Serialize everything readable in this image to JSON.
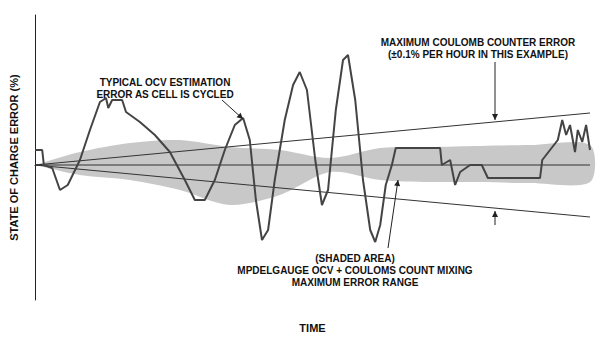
{
  "chart_data": {
    "type": "line",
    "x_label": "TIME",
    "y_label": "STATE OF CHARGE ERROR (%)",
    "xlim": [
      0,
      100
    ],
    "ylim": [
      -13.5,
      15
    ],
    "tick_labels": false,
    "grid": false,
    "series": [
      {
        "type": "band",
        "color": "#c8c8c8",
        "x": [
          0,
          8.1,
          17.1,
          26.1,
          35.1,
          44.1,
          53.2,
          62.2,
          71.2,
          80.2,
          89.2,
          100
        ],
        "upper": [
          0,
          1.3,
          2.2,
          2.5,
          1.8,
          1.5,
          0.7,
          1.7,
          1.8,
          1.9,
          2.0,
          2.0
        ],
        "lower": [
          0,
          -1.0,
          -1.5,
          -2.5,
          -4.0,
          -3.0,
          -0.7,
          -1.5,
          -1.7,
          -1.7,
          -1.8,
          -1.7
        ]
      },
      {
        "type": "line",
        "color": "#333333",
        "marker": "none",
        "line_style": "solid",
        "x": [
          0,
          100
        ],
        "values": [
          0,
          0
        ]
      },
      {
        "type": "line",
        "color": "#333333",
        "marker": "none",
        "line_style": "solid",
        "x": [
          0,
          100
        ],
        "values": [
          0,
          5.2
        ]
      },
      {
        "type": "line",
        "color": "#333333",
        "marker": "none",
        "line_style": "solid",
        "x": [
          0,
          100
        ],
        "values": [
          0,
          -5.2
        ]
      },
      {
        "type": "line",
        "color": "#444444",
        "marker": "none",
        "line_style": "solid",
        "x": [
          0,
          1.3,
          1.6,
          3.1,
          4.5,
          5.9,
          8.1,
          9.9,
          11.7,
          12.8,
          13.2,
          13.9,
          15.7,
          16.4,
          18.9,
          21.6,
          24.3,
          27.0,
          28.8,
          30.6,
          32.4,
          34.2,
          36.0,
          37.5,
          38.7,
          39.8,
          40.9,
          42.0,
          43.2,
          45.0,
          46.5,
          47.7,
          49.0,
          50.5,
          51.7,
          52.8,
          54.2,
          55.5,
          56.4,
          57.7,
          59.1,
          60.4,
          61.3,
          62.2,
          63.2,
          64.3,
          65.0,
          73.0,
          73.3,
          74.8,
          75.7,
          76.6,
          78.4,
          80.5,
          81.6,
          91.0,
          91.4,
          92.8,
          94.2,
          95.0,
          95.7,
          96.4,
          97.3,
          97.8,
          98.6,
          99.3,
          100
        ],
        "values": [
          1.5,
          1.5,
          0,
          -0.3,
          -2.5,
          -2.0,
          0.5,
          3.5,
          6.3,
          6.7,
          5.7,
          6.5,
          6.5,
          5.3,
          4.3,
          3.0,
          1.3,
          -1.5,
          -3.5,
          -3.5,
          -1.5,
          1.5,
          4.0,
          4.7,
          2.5,
          -3.5,
          -7.5,
          -6.5,
          -1.5,
          4.5,
          8.0,
          9.3,
          7.5,
          0.5,
          -4.0,
          -2.5,
          5.5,
          10.5,
          11.0,
          6.5,
          -1.5,
          -6.5,
          -7.7,
          -6.0,
          -2.0,
          0,
          1.7,
          1.7,
          0,
          0.5,
          -2.0,
          -0.7,
          0,
          0,
          -1.3,
          -1.3,
          0.5,
          1.5,
          2.5,
          4.5,
          3.0,
          4.0,
          1.3,
          3.5,
          2.3,
          4.0,
          1.5
        ]
      }
    ],
    "annotations": [
      {
        "text": "TYPICAL OCV ESTIMATION\nERROR AS CELL IS CYCLED"
      },
      {
        "text": "MAXIMUM COULOMB COUNTER ERROR\n(±0.1% PER HOUR IN THIS EXAMPLE)"
      },
      {
        "text": "(SHADED AREA)\nMPDELGAUGE OCV + COULOMS COUNT MIXING\nMAXIMUM ERROR RANGE"
      }
    ]
  }
}
